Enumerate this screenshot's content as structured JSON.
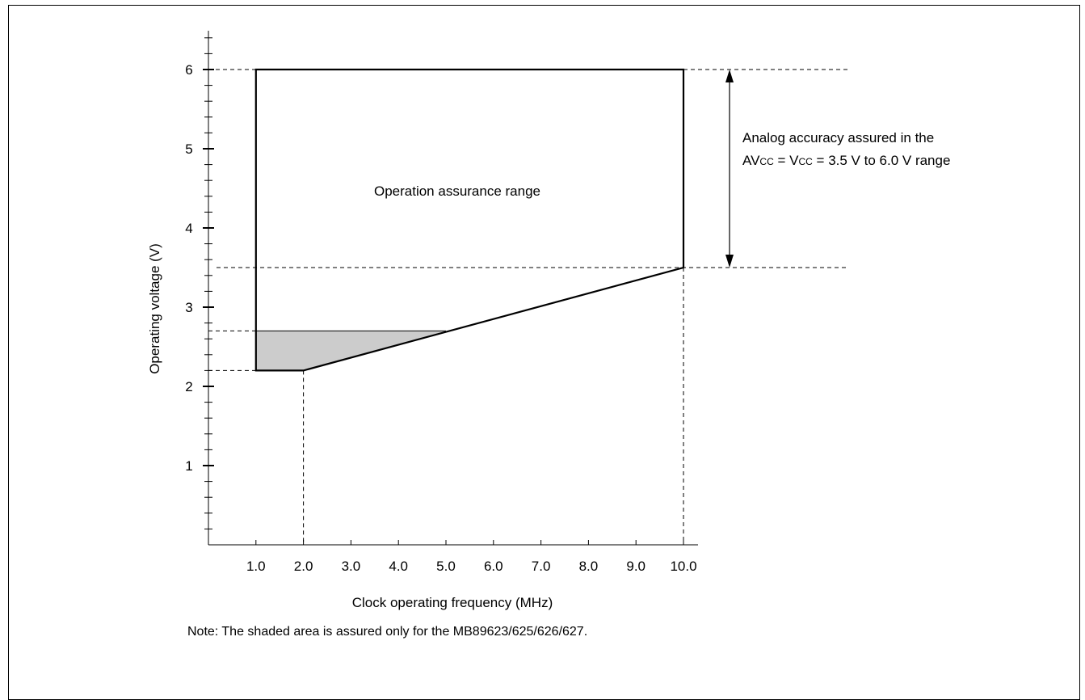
{
  "chart_data": {
    "type": "area",
    "xlabel": "Clock operating frequency (MHz)",
    "ylabel": "Operating voltage (V)",
    "xlim": [
      0,
      10.0
    ],
    "ylim": [
      0,
      6.4
    ],
    "x_ticks": [
      "1.0",
      "2.0",
      "3.0",
      "4.0",
      "5.0",
      "6.0",
      "7.0",
      "8.0",
      "9.0",
      "10.0"
    ],
    "x_tick_values": [
      1,
      2,
      3,
      4,
      5,
      6,
      7,
      8,
      9,
      10
    ],
    "y_ticks": [
      "1",
      "2",
      "3",
      "4",
      "5",
      "6"
    ],
    "y_tick_values": [
      1,
      2,
      3,
      4,
      5,
      6
    ],
    "y_minor_step": 0.2,
    "grid": false,
    "operation_range": {
      "label": "Operation assurance range",
      "polygon": [
        [
          1.0,
          6.0
        ],
        [
          10.0,
          6.0
        ],
        [
          10.0,
          3.5
        ],
        [
          2.0,
          2.2
        ],
        [
          1.0,
          2.2
        ]
      ]
    },
    "shaded_region": {
      "fill": "#cccccc",
      "polygon": [
        [
          1.0,
          2.7
        ],
        [
          5.0,
          2.7
        ],
        [
          2.0,
          2.2
        ],
        [
          1.0,
          2.2
        ]
      ]
    },
    "reference_lines": {
      "horizontal": [
        6.0,
        3.5,
        2.7,
        2.2
      ],
      "vertical": [
        2.0,
        10.0
      ]
    },
    "annotation": {
      "line1": "Analog accuracy assured in the",
      "line2_av": "AV",
      "line2_av_sub": "CC",
      "line2_eq": " = V",
      "line2_v_sub": "CC",
      "line2_rest": " = 3.5 V to 6.0 V range",
      "arrow_from": 3.5,
      "arrow_to": 6.0
    },
    "note": "Note: The shaded area is assured only for the MB89623/625/626/627."
  }
}
